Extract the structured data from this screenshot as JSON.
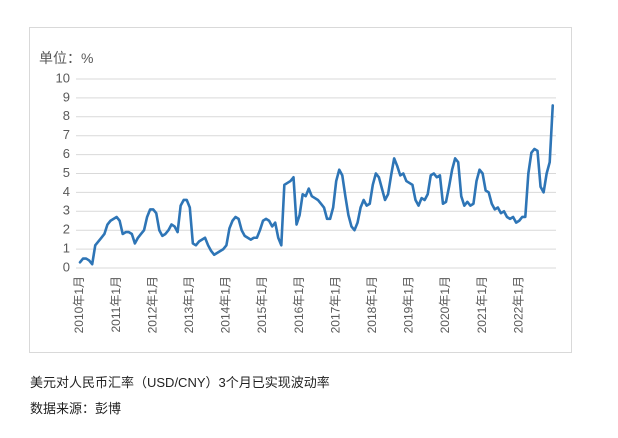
{
  "chart_data": {
    "type": "line",
    "title": "美元对人民币汇率（USD/CNY）3个月已实现波动率",
    "source": "数据来源：彭博",
    "ylabel": "单位：%",
    "ylim": [
      0,
      10
    ],
    "yticks": [
      0,
      1,
      2,
      3,
      4,
      5,
      6,
      7,
      8,
      9,
      10
    ],
    "xtick_labels": [
      "2010年1月",
      "2011年1月",
      "2012年1月",
      "2013年1月",
      "2014年1月",
      "2015年1月",
      "2016年1月",
      "2017年1月",
      "2018年1月",
      "2019年1月",
      "2020年1月",
      "2021年1月",
      "2022年1月"
    ],
    "grid": "horizontal",
    "legend": "none",
    "series": [
      {
        "color": "#2E75B6",
        "x": [
          "2010-01",
          "2010-02",
          "2010-03",
          "2010-04",
          "2010-05",
          "2010-06",
          "2010-07",
          "2010-08",
          "2010-09",
          "2010-10",
          "2010-11",
          "2010-12",
          "2011-01",
          "2011-02",
          "2011-03",
          "2011-04",
          "2011-05",
          "2011-06",
          "2011-07",
          "2011-08",
          "2011-09",
          "2011-10",
          "2011-11",
          "2011-12",
          "2012-01",
          "2012-02",
          "2012-03",
          "2012-04",
          "2012-05",
          "2012-06",
          "2012-07",
          "2012-08",
          "2012-09",
          "2012-10",
          "2012-11",
          "2012-12",
          "2013-01",
          "2013-02",
          "2013-03",
          "2013-04",
          "2013-05",
          "2013-06",
          "2013-07",
          "2013-08",
          "2013-09",
          "2013-10",
          "2013-11",
          "2013-12",
          "2014-01",
          "2014-02",
          "2014-03",
          "2014-04",
          "2014-05",
          "2014-06",
          "2014-07",
          "2014-08",
          "2014-09",
          "2014-10",
          "2014-11",
          "2014-12",
          "2015-01",
          "2015-02",
          "2015-03",
          "2015-04",
          "2015-05",
          "2015-06",
          "2015-07",
          "2015-08",
          "2015-09",
          "2015-10",
          "2015-11",
          "2015-12",
          "2016-01",
          "2016-02",
          "2016-03",
          "2016-04",
          "2016-05",
          "2016-06",
          "2016-07",
          "2016-08",
          "2016-09",
          "2016-10",
          "2016-11",
          "2016-12",
          "2017-01",
          "2017-02",
          "2017-03",
          "2017-04",
          "2017-05",
          "2017-06",
          "2017-07",
          "2017-08",
          "2017-09",
          "2017-10",
          "2017-11",
          "2017-12",
          "2018-01",
          "2018-02",
          "2018-03",
          "2018-04",
          "2018-05",
          "2018-06",
          "2018-07",
          "2018-08",
          "2018-09",
          "2018-10",
          "2018-11",
          "2018-12",
          "2019-01",
          "2019-02",
          "2019-03",
          "2019-04",
          "2019-05",
          "2019-06",
          "2019-07",
          "2019-08",
          "2019-09",
          "2019-10",
          "2019-11",
          "2019-12",
          "2020-01",
          "2020-02",
          "2020-03",
          "2020-04",
          "2020-05",
          "2020-06",
          "2020-07",
          "2020-08",
          "2020-09",
          "2020-10",
          "2020-11",
          "2020-12",
          "2021-01",
          "2021-02",
          "2021-03",
          "2021-04",
          "2021-05",
          "2021-06",
          "2021-07",
          "2021-08",
          "2021-09",
          "2021-10",
          "2021-11",
          "2021-12",
          "2022-01",
          "2022-02",
          "2022-03",
          "2022-04",
          "2022-05",
          "2022-06",
          "2022-07",
          "2022-08",
          "2022-09",
          "2022-10",
          "2022-11",
          "2022-12"
        ],
        "values": [
          0.3,
          0.5,
          0.5,
          0.4,
          0.2,
          1.2,
          1.4,
          1.6,
          1.8,
          2.3,
          2.5,
          2.6,
          2.7,
          2.5,
          1.8,
          1.9,
          1.9,
          1.8,
          1.3,
          1.6,
          1.8,
          2.0,
          2.7,
          3.1,
          3.1,
          2.9,
          2.0,
          1.7,
          1.8,
          2.0,
          2.3,
          2.2,
          1.9,
          3.3,
          3.6,
          3.6,
          3.2,
          1.3,
          1.2,
          1.4,
          1.5,
          1.6,
          1.2,
          0.9,
          0.7,
          0.8,
          0.9,
          1.0,
          1.2,
          2.1,
          2.5,
          2.7,
          2.6,
          2.0,
          1.7,
          1.6,
          1.5,
          1.6,
          1.6,
          2.0,
          2.5,
          2.6,
          2.5,
          2.2,
          2.4,
          1.6,
          1.2,
          4.4,
          4.5,
          4.6,
          4.8,
          2.3,
          2.8,
          3.9,
          3.8,
          4.2,
          3.8,
          3.7,
          3.6,
          3.4,
          3.2,
          2.6,
          2.6,
          3.2,
          4.6,
          5.2,
          4.9,
          3.8,
          2.8,
          2.2,
          2.0,
          2.4,
          3.2,
          3.6,
          3.3,
          3.4,
          4.4,
          5.0,
          4.8,
          4.2,
          3.6,
          3.9,
          4.9,
          5.8,
          5.4,
          4.9,
          5.0,
          4.6,
          4.5,
          4.4,
          3.6,
          3.3,
          3.7,
          3.6,
          3.9,
          4.9,
          5.0,
          4.8,
          4.9,
          3.4,
          3.5,
          4.3,
          5.2,
          5.8,
          5.6,
          3.8,
          3.3,
          3.5,
          3.3,
          3.4,
          4.6,
          5.2,
          5.0,
          4.1,
          4.0,
          3.4,
          3.1,
          3.2,
          2.9,
          3.0,
          2.7,
          2.6,
          2.7,
          2.4,
          2.5,
          2.7,
          2.7,
          5.0,
          6.1,
          6.3,
          6.2,
          4.3,
          4.0,
          5.0,
          5.6,
          8.6
        ]
      }
    ]
  },
  "colors": {
    "line": "#2E75B6",
    "grid": "#D9D9D9",
    "tick_text": "#595959",
    "frame_border": "#D9D9D9"
  }
}
